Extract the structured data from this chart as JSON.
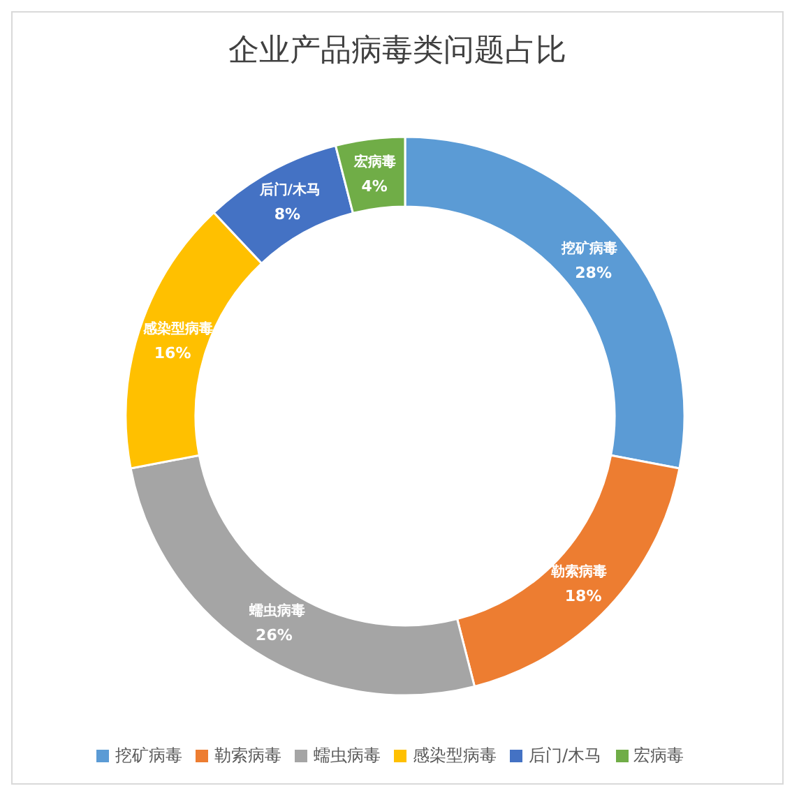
{
  "chart_data": {
    "type": "donut",
    "title": "企业产品病毒类问题占比",
    "categories": [
      "挖矿病毒",
      "勒索病毒",
      "蠕虫病毒",
      "感染型病毒",
      "后门/木马",
      "宏病毒"
    ],
    "values": [
      28,
      18,
      26,
      16,
      8,
      4
    ],
    "colors": [
      "#5b9bd5",
      "#ed7d31",
      "#a5a5a5",
      "#ffc000",
      "#4472c4",
      "#70ad47"
    ],
    "value_labels": [
      "28%",
      "18%",
      "26%",
      "16%",
      "8%",
      "4%"
    ],
    "legend": "bottom"
  }
}
